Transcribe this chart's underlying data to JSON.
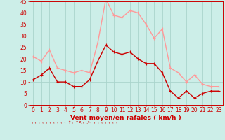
{
  "x": [
    0,
    1,
    2,
    3,
    4,
    5,
    6,
    7,
    8,
    9,
    10,
    11,
    12,
    13,
    14,
    15,
    16,
    17,
    18,
    19,
    20,
    21,
    22,
    23
  ],
  "wind_avg": [
    11,
    13,
    16,
    10,
    10,
    8,
    8,
    11,
    19,
    26,
    23,
    22,
    23,
    20,
    18,
    18,
    14,
    6,
    3,
    6,
    3,
    5,
    6,
    6
  ],
  "wind_gust": [
    21,
    19,
    24,
    16,
    15,
    14,
    15,
    14,
    27,
    46,
    39,
    38,
    41,
    40,
    35,
    29,
    33,
    16,
    14,
    10,
    13,
    9,
    8,
    8
  ],
  "xlabel": "Vent moyen/en rafales ( km/h )",
  "ylim": [
    0,
    45
  ],
  "xlim": [
    -0.5,
    23.5
  ],
  "yticks": [
    0,
    5,
    10,
    15,
    20,
    25,
    30,
    35,
    40,
    45
  ],
  "xticks": [
    0,
    1,
    2,
    3,
    4,
    5,
    6,
    7,
    8,
    9,
    10,
    11,
    12,
    13,
    14,
    15,
    16,
    17,
    18,
    19,
    20,
    21,
    22,
    23
  ],
  "bg_color": "#cceee8",
  "grid_color": "#aad4cc",
  "line_color_avg": "#cc0000",
  "line_color_gust": "#ff9999",
  "marker_size": 2.5,
  "line_width": 1.0,
  "tick_fontsize": 5.5,
  "xlabel_fontsize": 6.5
}
